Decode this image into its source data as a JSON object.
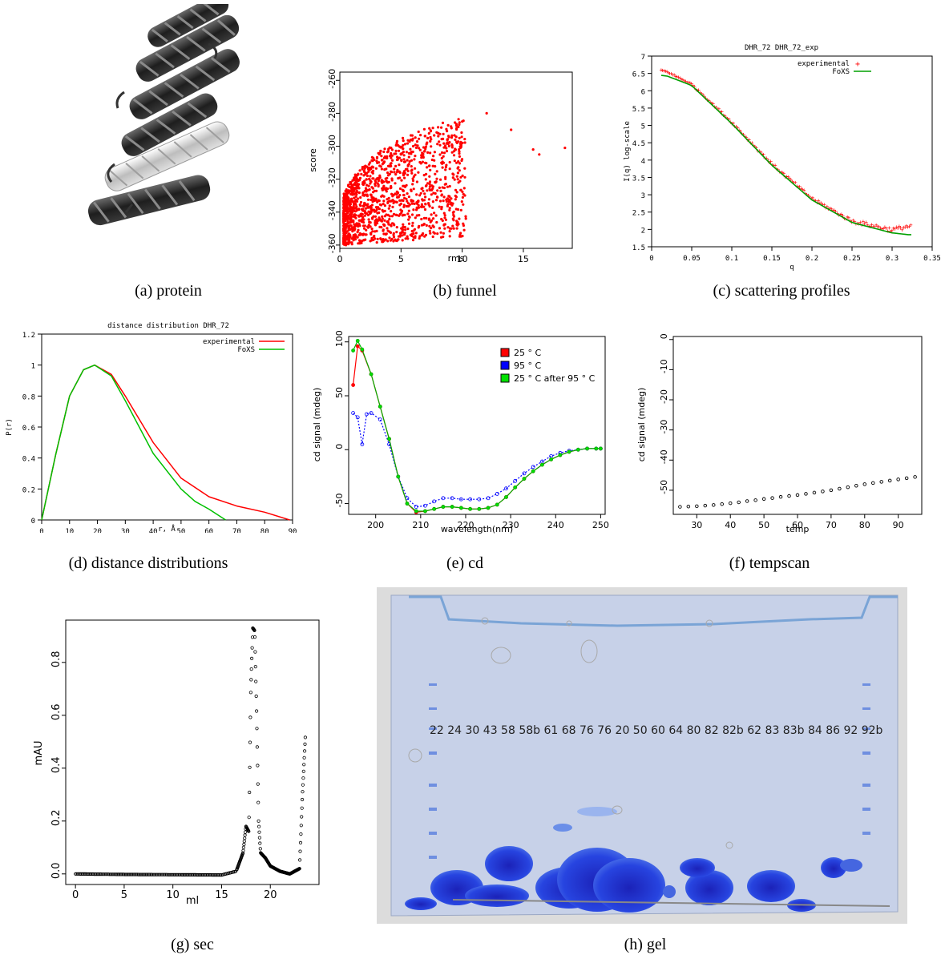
{
  "captions": {
    "a": "(a) protein",
    "b": "(b) funnel",
    "c": "(c) scattering profiles",
    "d": "(d) distance distributions",
    "e": "(e) cd",
    "f": "(f) tempscan",
    "g": "(g) sec",
    "h": "(h) gel"
  },
  "colors": {
    "red": "#ff0000",
    "green": "#00c000",
    "blue": "#0000ff",
    "black": "#000000",
    "gel_blue": "#1a3de0"
  },
  "funnel": {
    "xlabel": "rms",
    "ylabel": "score",
    "xticks": [
      "0",
      "5",
      "10",
      "15"
    ],
    "yticks": [
      "-260",
      "-280",
      "-300",
      "-320",
      "-340",
      "-360"
    ]
  },
  "scattering": {
    "title": "DHR_72 DHR_72_exp",
    "xlabel": "q",
    "ylabel": "I(q) log-scale",
    "legend": [
      "experimental",
      "FoXS"
    ],
    "xticks": [
      "0",
      "0.05",
      "0.1",
      "0.15",
      "0.2",
      "0.25",
      "0.3",
      "0.35"
    ],
    "yticks": [
      "1.5",
      "2",
      "2.5",
      "3",
      "3.5",
      "4",
      "4.5",
      "5",
      "5.5",
      "6",
      "6.5",
      "7"
    ]
  },
  "distance": {
    "title": "distance distribution DHR_72",
    "xlabel": "r, Å",
    "ylabel": "P(r)",
    "legend": [
      "experimental",
      "FoXS"
    ],
    "xticks": [
      "0",
      "10",
      "20",
      "30",
      "40",
      "50",
      "60",
      "70",
      "80",
      "90"
    ],
    "yticks": [
      "0",
      "0.2",
      "0.4",
      "0.6",
      "0.8",
      "1",
      "1.2"
    ]
  },
  "cd": {
    "xlabel": "wavelength(nm)",
    "ylabel": "cd signal (mdeg)",
    "legend": [
      "25 ° C",
      "95 ° C",
      "25 ° C after 95 ° C"
    ],
    "xticks": [
      "200",
      "210",
      "220",
      "230",
      "240",
      "250"
    ],
    "yticks": [
      "100",
      "50",
      "0",
      "-50"
    ]
  },
  "tempscan": {
    "xlabel": "temp",
    "ylabel": "cd signal (mdeg)",
    "xticks": [
      "30",
      "40",
      "50",
      "60",
      "70",
      "80",
      "90"
    ],
    "yticks": [
      "0",
      "-10",
      "-20",
      "-30",
      "-40",
      "-50"
    ]
  },
  "sec": {
    "xlabel": "ml",
    "ylabel": "mAU",
    "xticks": [
      "0",
      "5",
      "10",
      "15",
      "20"
    ],
    "yticks": [
      "0.0",
      "0.2",
      "0.4",
      "0.6",
      "0.8"
    ]
  },
  "gel": {
    "lane_labels": "22 24   30 43  58 58b 61 68 76 76   20 50 60 64 80   82 82b 62 83 83b  84 86 92 92b"
  },
  "chart_data": [
    {
      "type": "scatter",
      "xlabel": "rms",
      "ylabel": "score",
      "xlim": [
        0,
        19
      ],
      "ylim": [
        -362,
        -255
      ],
      "x": [
        0.5,
        1,
        2,
        3,
        4,
        5,
        6,
        8,
        10,
        12,
        14,
        15.8,
        16.3,
        18.4
      ],
      "y": [
        -360,
        -345,
        -330,
        -320,
        -312,
        -305,
        -300,
        -292,
        -285,
        -280,
        -290,
        -302,
        -305,
        -301
      ]
    },
    {
      "type": "line",
      "title": "DHR_72 DHR_72_exp",
      "xlabel": "q",
      "ylabel": "I(q) log-scale",
      "xlim": [
        0,
        0.35
      ],
      "ylim": [
        1.5,
        7
      ],
      "legend": "top-right",
      "series": [
        {
          "name": "experimental",
          "x": [
            0.01,
            0.02,
            0.05,
            0.1,
            0.15,
            0.2,
            0.25,
            0.3,
            0.32
          ],
          "y": [
            6.62,
            6.55,
            6.2,
            5.1,
            3.9,
            2.9,
            2.25,
            2.0,
            2.1
          ]
        },
        {
          "name": "FoXS",
          "x": [
            0.01,
            0.02,
            0.05,
            0.1,
            0.15,
            0.2,
            0.25,
            0.3,
            0.32
          ],
          "y": [
            6.45,
            6.42,
            6.15,
            5.05,
            3.85,
            2.85,
            2.2,
            1.9,
            1.85
          ]
        }
      ]
    },
    {
      "type": "line",
      "title": "distance distribution DHR_72",
      "xlabel": "r, Å",
      "ylabel": "P(r)",
      "xlim": [
        0,
        90
      ],
      "ylim": [
        0,
        1.2
      ],
      "legend": "top-right",
      "series": [
        {
          "name": "experimental",
          "x": [
            0,
            5,
            10,
            15,
            19,
            25,
            30,
            40,
            50,
            60,
            70,
            80,
            89
          ],
          "y": [
            0,
            0.42,
            0.8,
            0.97,
            1.0,
            0.94,
            0.8,
            0.5,
            0.27,
            0.15,
            0.09,
            0.05,
            0.0
          ]
        },
        {
          "name": "FoXS",
          "x": [
            0,
            5,
            10,
            15,
            19,
            25,
            30,
            40,
            50,
            55,
            60,
            66
          ],
          "y": [
            0,
            0.42,
            0.8,
            0.97,
            1.0,
            0.93,
            0.77,
            0.43,
            0.2,
            0.12,
            0.07,
            0.0
          ]
        }
      ]
    },
    {
      "type": "line",
      "xlabel": "wavelength(nm)",
      "ylabel": "cd signal (mdeg)",
      "xlim": [
        194,
        251
      ],
      "ylim": [
        -60,
        105
      ],
      "legend": "top-right",
      "series": [
        {
          "name": "25 ° C",
          "x": [
            195,
            196,
            197,
            199,
            201,
            203,
            205,
            207,
            209,
            211,
            213,
            215,
            217,
            219,
            221,
            223,
            225,
            227,
            229,
            231,
            233,
            235,
            237,
            239,
            241,
            243,
            245,
            247,
            249,
            250
          ],
          "y": [
            60,
            96,
            92,
            70,
            40,
            10,
            -25,
            -50,
            -58,
            -57,
            -55,
            -53,
            -53,
            -54,
            -55,
            -55,
            -54,
            -51,
            -44,
            -35,
            -27,
            -20,
            -14,
            -9,
            -5,
            -2,
            0,
            1,
            1,
            1
          ]
        },
        {
          "name": "95 ° C",
          "x": [
            195,
            196,
            197,
            198,
            199,
            201,
            203,
            205,
            207,
            209,
            211,
            213,
            215,
            217,
            219,
            221,
            223,
            225,
            227,
            229,
            231,
            233,
            235,
            237,
            239,
            241,
            243,
            245,
            247,
            249,
            250
          ],
          "y": [
            34,
            30,
            5,
            33,
            34,
            28,
            5,
            -25,
            -45,
            -53,
            -52,
            -48,
            -45,
            -45,
            -46,
            -46,
            -46,
            -45,
            -41,
            -36,
            -29,
            -22,
            -16,
            -11,
            -6,
            -3,
            -1,
            0,
            1,
            1,
            1
          ]
        },
        {
          "name": "25 ° C after 95 ° C",
          "x": [
            195,
            196,
            197,
            199,
            201,
            203,
            205,
            207,
            209,
            211,
            213,
            215,
            217,
            219,
            221,
            223,
            225,
            227,
            229,
            231,
            233,
            235,
            237,
            239,
            241,
            243,
            245,
            247,
            249,
            250
          ],
          "y": [
            92,
            101,
            93,
            70,
            40,
            10,
            -25,
            -50,
            -57,
            -57,
            -55,
            -53,
            -53,
            -54,
            -55,
            -55,
            -54,
            -51,
            -44,
            -35,
            -27,
            -20,
            -14,
            -9,
            -5,
            -2,
            0,
            1,
            1,
            1
          ]
        }
      ]
    },
    {
      "type": "scatter",
      "xlabel": "temp",
      "ylabel": "cd signal (mdeg)",
      "xlim": [
        23,
        97
      ],
      "ylim": [
        -58,
        1
      ],
      "x": [
        25,
        27.5,
        30,
        32.5,
        35,
        37.5,
        40,
        42.5,
        45,
        47.5,
        50,
        52.5,
        55,
        57.5,
        60,
        62.5,
        65,
        67.5,
        70,
        72.5,
        75,
        77.5,
        80,
        82.5,
        85,
        87.5,
        90,
        92.5,
        95
      ],
      "y": [
        -55.5,
        -55.4,
        -55.3,
        -55.1,
        -54.9,
        -54.6,
        -54.3,
        -54.0,
        -53.6,
        -53.3,
        -52.9,
        -52.6,
        -52.2,
        -51.9,
        -51.6,
        -51.2,
        -50.8,
        -50.4,
        -50.0,
        -49.5,
        -49.0,
        -48.5,
        -48.0,
        -47.6,
        -47.2,
        -46.8,
        -46.4,
        -46.0,
        -45.6
      ]
    },
    {
      "type": "scatter",
      "xlabel": "ml",
      "ylabel": "mAU",
      "xlim": [
        -1,
        25
      ],
      "ylim": [
        -0.04,
        0.96
      ],
      "x": [
        0,
        5,
        10,
        15,
        16.5,
        17.2,
        17.5,
        17.8,
        18.0,
        18.2,
        18.4,
        18.6,
        18.8,
        19.0,
        19.5,
        20,
        21,
        22,
        23,
        23.3,
        23.6
      ],
      "y": [
        0.0,
        -0.002,
        -0.003,
        -0.004,
        0.01,
        0.08,
        0.18,
        0.16,
        0.7,
        0.93,
        0.92,
        0.6,
        0.2,
        0.08,
        0.06,
        0.03,
        0.01,
        0.0,
        0.02,
        0.3,
        0.52
      ]
    }
  ]
}
